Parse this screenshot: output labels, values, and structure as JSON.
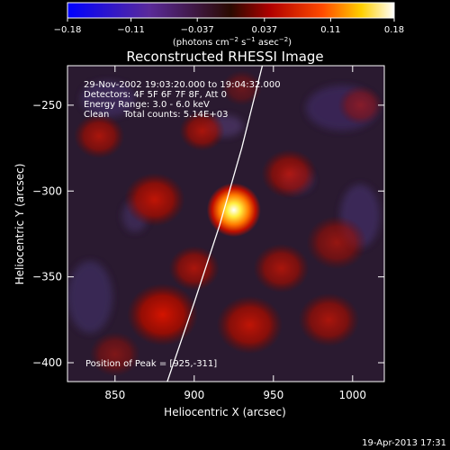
{
  "chart_data": {
    "type": "heatmap",
    "title": "Reconstructed RHESSI Image",
    "xlabel": "Heliocentric X (arcsec)",
    "ylabel": "Heliocentric Y (arcsec)",
    "xlim": [
      820,
      1020
    ],
    "ylim": [
      -411,
      -227
    ],
    "x_ticks": [
      850,
      900,
      950,
      1000
    ],
    "x_tick_labels": [
      "850",
      "900",
      "950",
      "1000"
    ],
    "y_ticks": [
      -250,
      -300,
      -350,
      -400
    ],
    "y_tick_labels": [
      "−250",
      "−300",
      "−350",
      "−400"
    ],
    "colorbar": {
      "range": [
        -0.18,
        0.18
      ],
      "ticks": [
        -0.18,
        -0.11,
        -0.037,
        0.037,
        0.11,
        0.18
      ],
      "tick_labels": [
        "−0.18",
        "−0.11",
        "−0.037",
        "0.037",
        "0.11",
        "0.18"
      ],
      "units_text": "(photons cm",
      "units_exp1": "−2",
      "units_mid": " s",
      "units_exp2": "−1",
      "units_tail": " asec",
      "units_exp3": "−2",
      "units_close": ")"
    },
    "annotations": [
      "29-Nov-2002 19:03:20.000 to 19:04:32.000",
      "Detectors: 4F 5F 6F 7F 8F, Att 0",
      "Energy Range: 3.0 - 6.0 keV",
      "Clean     Total counts: 5.14E+03"
    ],
    "peak_label": "Position of Peak = [925,-311]",
    "peak": [
      925,
      -311
    ],
    "limb_arc": [
      [
        883,
        -411
      ],
      [
        900,
        -365
      ],
      [
        916,
        -320
      ],
      [
        930,
        -275
      ],
      [
        943,
        -227
      ]
    ],
    "sources": [
      {
        "x": 925,
        "y": -311,
        "flux": 0.18,
        "size": 9
      },
      {
        "x": 840,
        "y": -268,
        "flux": 0.06,
        "size": 10
      },
      {
        "x": 875,
        "y": -305,
        "flux": 0.07,
        "size": 12
      },
      {
        "x": 905,
        "y": -265,
        "flux": 0.06,
        "size": 9
      },
      {
        "x": 960,
        "y": -290,
        "flux": 0.06,
        "size": 11
      },
      {
        "x": 990,
        "y": -330,
        "flux": 0.05,
        "size": 12
      },
      {
        "x": 900,
        "y": -345,
        "flux": 0.06,
        "size": 10
      },
      {
        "x": 955,
        "y": -345,
        "flux": 0.06,
        "size": 11
      },
      {
        "x": 880,
        "y": -372,
        "flux": 0.08,
        "size": 14
      },
      {
        "x": 935,
        "y": -378,
        "flux": 0.07,
        "size": 13
      },
      {
        "x": 985,
        "y": -375,
        "flux": 0.06,
        "size": 12
      },
      {
        "x": 850,
        "y": -395,
        "flux": 0.04,
        "size": 10
      },
      {
        "x": 1005,
        "y": -250,
        "flux": 0.04,
        "size": 9
      },
      {
        "x": 930,
        "y": -240,
        "flux": 0.03,
        "size": 8
      }
    ]
  },
  "footer": {
    "timestamp": "19-Apr-2013 17:31"
  }
}
